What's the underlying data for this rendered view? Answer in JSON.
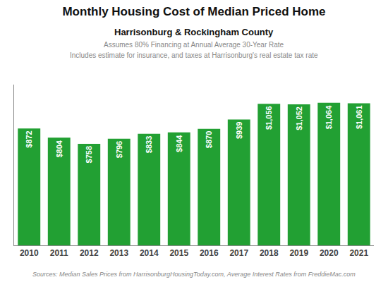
{
  "chart_data": {
    "type": "bar",
    "title": "Monthly Housing Cost of Median Priced Home",
    "subtitle": "Harrisonburg & Rockingham County",
    "annotations": [
      "Assumes 80% Financing at Annual Average 30-Year Rate",
      "Includes estimate for insurance, and taxes at Harrisonburg's real estate tax rate",
      "Sources: Median Sales Prices from HarrisonburgHousingToday.com, Average Interest Rates from FreddieMac.com"
    ],
    "categories": [
      "2010",
      "2011",
      "2012",
      "2013",
      "2014",
      "2015",
      "2016",
      "2017",
      "2018",
      "2019",
      "2020",
      "2021"
    ],
    "values": [
      872,
      804,
      758,
      796,
      833,
      844,
      870,
      939,
      1056,
      1052,
      1064,
      1061
    ],
    "value_labels": [
      "$872",
      "$804",
      "$758",
      "$796",
      "$833",
      "$844",
      "$870",
      "$939",
      "$1,056",
      "$1,052",
      "$1,064",
      "$1,061"
    ],
    "data_labels": true,
    "color": "#22a033",
    "ylim": [
      0,
      1200
    ],
    "grid": false,
    "tick_labels": "x"
  }
}
